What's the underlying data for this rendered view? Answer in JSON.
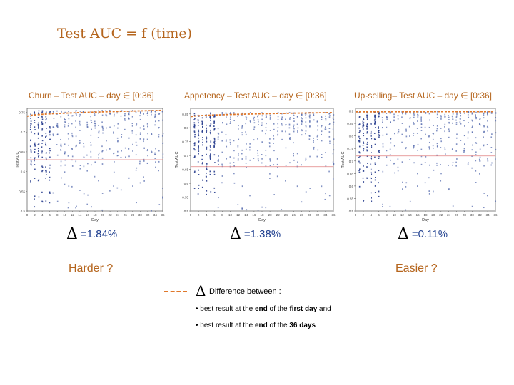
{
  "title": "Test AUC = f (time)",
  "verdicts": {
    "left": "Harder ?",
    "right": "Easier ?"
  },
  "deltas": [
    "=1.84%",
    "=1.38%",
    "=0.11%"
  ],
  "legend": {
    "symbol": "Δ",
    "text": "Difference between :",
    "bullets": [
      {
        "prefix": "• best result at the ",
        "b1": "end",
        "mid": " of the ",
        "b2": "first day",
        "suffix": " and"
      },
      {
        "prefix": "• best result at the ",
        "b1": "end",
        "mid": " of the ",
        "b2": "36 days",
        "suffix": ""
      }
    ]
  },
  "chart_data": [
    {
      "type": "scatter",
      "title": "Churn – Test AUC – day ∈ [0:36]",
      "xlabel": "Day",
      "ylabel": "Test AUC",
      "xlim": [
        0,
        36
      ],
      "ylim": [
        0.5,
        0.76
      ],
      "xticks": [
        "0",
        "2",
        "4",
        "6",
        "8",
        "10",
        "12",
        "14",
        "16",
        "18",
        "20",
        "22",
        "24",
        "26",
        "28",
        "30",
        "32",
        "34",
        "36"
      ],
      "yticks": [
        "0.5",
        "0.55",
        "0.6",
        "0.65",
        "0.7",
        "0.75"
      ],
      "reference_line": 0.63,
      "best_curve": {
        "start": 0.74,
        "end": 0.755
      },
      "delta": "=1.84%"
    },
    {
      "type": "scatter",
      "title": "Appetency – Test AUC – day ∈ [0:36]",
      "xlabel": "Day",
      "ylabel": "Test AUC",
      "xlim": [
        0,
        36
      ],
      "ylim": [
        0.5,
        0.87
      ],
      "xticks": [
        "0",
        "2",
        "4",
        "6",
        "8",
        "10",
        "12",
        "14",
        "16",
        "18",
        "20",
        "22",
        "24",
        "26",
        "28",
        "30",
        "32",
        "34",
        "36"
      ],
      "yticks": [
        "0.5",
        "0.55",
        "0.6",
        "0.65",
        "0.7",
        "0.75",
        "0.8",
        "0.85"
      ],
      "reference_line": 0.66,
      "best_curve": {
        "start": 0.84,
        "end": 0.855
      },
      "delta": "=1.38%"
    },
    {
      "type": "scatter",
      "title": "Up-selling– Test AUC – day ∈ [0:36]",
      "xlabel": "Day",
      "ylabel": "Test AUC",
      "xlim": [
        0,
        36
      ],
      "ylim": [
        0.5,
        0.91
      ],
      "xticks": [
        "0",
        "2",
        "4",
        "6",
        "8",
        "10",
        "12",
        "14",
        "16",
        "18",
        "20",
        "22",
        "24",
        "26",
        "28",
        "30",
        "32",
        "34",
        "36"
      ],
      "yticks": [
        "0.5",
        "0.55",
        "0.6",
        "0.65",
        "0.7",
        "0.75",
        "0.8",
        "0.85",
        "0.9"
      ],
      "reference_line": 0.72,
      "best_curve": {
        "start": 0.896,
        "end": 0.897
      },
      "delta": "=0.11%"
    }
  ]
}
